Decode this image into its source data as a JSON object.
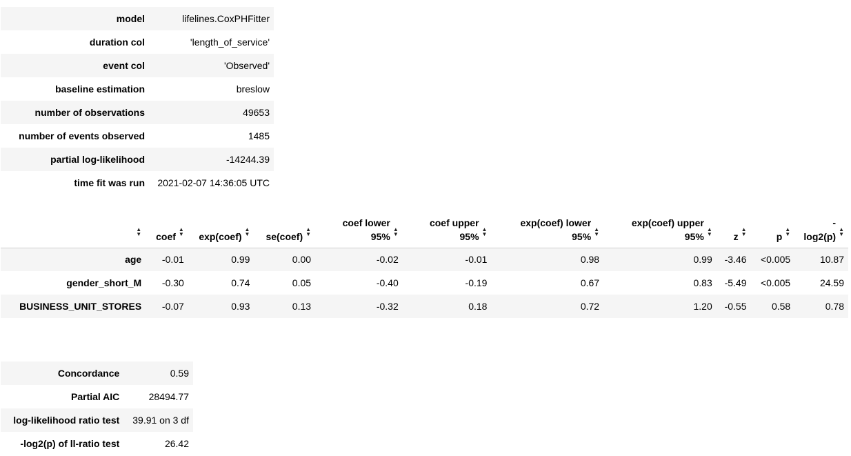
{
  "summary": [
    {
      "label": "model",
      "value": "lifelines.CoxPHFitter"
    },
    {
      "label": "duration col",
      "value": "'length_of_service'"
    },
    {
      "label": "event col",
      "value": "'Observed'"
    },
    {
      "label": "baseline estimation",
      "value": "breslow"
    },
    {
      "label": "number of observations",
      "value": "49653"
    },
    {
      "label": "number of events observed",
      "value": "1485"
    },
    {
      "label": "partial log-likelihood",
      "value": "-14244.39"
    },
    {
      "label": "time fit was run",
      "value": "2021-02-07 14:36:05 UTC"
    }
  ],
  "coef_table": {
    "headers": [
      {
        "line1": "",
        "line2": ""
      },
      {
        "line1": "",
        "line2": "coef"
      },
      {
        "line1": "",
        "line2": "exp(coef)"
      },
      {
        "line1": "",
        "line2": "se(coef)"
      },
      {
        "line1": "coef lower",
        "line2": "95%"
      },
      {
        "line1": "coef upper",
        "line2": "95%"
      },
      {
        "line1": "exp(coef) lower",
        "line2": "95%"
      },
      {
        "line1": "exp(coef) upper",
        "line2": "95%"
      },
      {
        "line1": "",
        "line2": "z"
      },
      {
        "line1": "",
        "line2": "p"
      },
      {
        "line1": "-",
        "line2": "log2(p)"
      }
    ],
    "rows": [
      {
        "name": "age",
        "cells": [
          "-0.01",
          "0.99",
          "0.00",
          "-0.02",
          "-0.01",
          "0.98",
          "0.99",
          "-3.46",
          "<0.005",
          "10.87"
        ]
      },
      {
        "name": "gender_short_M",
        "cells": [
          "-0.30",
          "0.74",
          "0.05",
          "-0.40",
          "-0.19",
          "0.67",
          "0.83",
          "-5.49",
          "<0.005",
          "24.59"
        ]
      },
      {
        "name": "BUSINESS_UNIT_STORES",
        "cells": [
          "-0.07",
          "0.93",
          "0.13",
          "-0.32",
          "0.18",
          "0.72",
          "1.20",
          "-0.55",
          "0.58",
          "0.78"
        ]
      }
    ]
  },
  "fit_stats": [
    {
      "label": "Concordance",
      "value": "0.59"
    },
    {
      "label": "Partial AIC",
      "value": "28494.77"
    },
    {
      "label": "log-likelihood ratio test",
      "value": "39.91 on 3 df"
    },
    {
      "label": "-log2(p) of ll-ratio test",
      "value": "26.42"
    }
  ]
}
